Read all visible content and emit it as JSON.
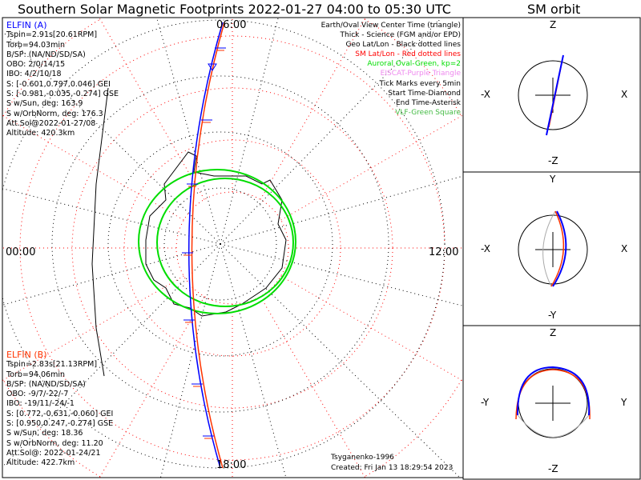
{
  "title": "Southern Solar Magnetic Footprints 2022-01-27 04:00 to 05:30 UTC",
  "sm_orbit_title": "SM orbit",
  "elfin_a": {
    "name": "ELFIN (A)",
    "lines": [
      "Tspin=2.91s[20.61RPM]",
      "Torb=94.03min",
      "B/SP: (NA/ND/SD/SA)",
      "OBO: 2/0/14/15",
      "IBO: 4/2/10/18",
      "S: [-0.601,0.797,0.046] GEI",
      "S: [-0.981,-0.035,-0.274] GSE",
      "S w/Sun, deg: 163.9",
      "S w/OrbNorm, deg: 176.3",
      "Att.Sol@2022-01-27/08",
      "Altitude: 420.3km"
    ]
  },
  "elfin_b": {
    "name": "ELFIN (B)",
    "lines": [
      "Tspin=2.83s[21.13RPM]",
      "Torb=94.06min",
      "B/SP: (NA/ND/SD/SA)",
      "OBO: -9/7/-22/-7",
      "IBO: -19/11/-24/-1",
      "S: [0.772,-0.631,-0.060] GEI",
      "S: [0.950,0.247,-0.274] GSE",
      "S w/Sun, deg: 18.36",
      "S w/OrbNorm, deg: 11.20",
      "Att.Sol@: 2022-01-24/21",
      "Altitude: 422.7km"
    ]
  },
  "legend": [
    {
      "text": "Earth/Oval View Center Time (triangle)",
      "color": "#000000"
    },
    {
      "text": "Thick - Science (FGM and/or EPD)",
      "color": "#000000"
    },
    {
      "text": "Geo Lat/Lon - Black dotted lines",
      "color": "#000000"
    },
    {
      "text": "SM Lat/Lon - Red dotted lines",
      "color": "#ff0000"
    },
    {
      "text": "Auroral Oval-Green, kp=2",
      "color": "#00dd00"
    },
    {
      "text": "EISCAT-Purple Triangle",
      "color": "#ee88ee"
    },
    {
      "text": "Tick Marks every 5min",
      "color": "#000000"
    },
    {
      "text": "Start Time-Diamond",
      "color": "#000000"
    },
    {
      "text": "End Time-Asterisk",
      "color": "#000000"
    },
    {
      "text": "VLF-Green Square",
      "color": "#44bb44"
    }
  ],
  "mlt_labels": {
    "top": "06:00",
    "left": "00:00",
    "right": "12:00",
    "bottom": "18:00"
  },
  "footer": {
    "model": "Tsyganenko-1996",
    "created": "Created: Fri Jan 13 18:29:54 2023"
  },
  "orbit_panels": [
    {
      "top": "Z",
      "bottom": "-Z",
      "left": "-X",
      "right": "X"
    },
    {
      "top": "Y",
      "bottom": "-Y",
      "left": "-X",
      "right": "X"
    },
    {
      "top": "Z",
      "bottom": "-Z",
      "left": "-Y",
      "right": "Y"
    }
  ],
  "colors": {
    "elfin_a": "#0000ff",
    "elfin_b": "#ff3300",
    "oval": "#00dd00",
    "sm_grid": "#ff0000"
  }
}
